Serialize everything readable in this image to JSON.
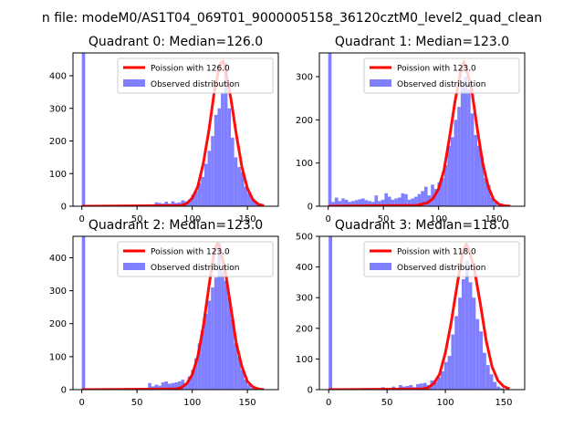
{
  "page_title": "n file: modeM0/AS1T04_069T01_9000005158_36120cztM0_level2_quad_clean",
  "colors": {
    "curve": "#ff0000",
    "hist": "#7f7fff",
    "axis": "#000000",
    "legend_border": "#cccccc"
  },
  "chart_data": [
    {
      "type": "bar",
      "title": "Quadrant 0: Median=126.0",
      "median": 126.0,
      "xlim": [
        -8,
        178
      ],
      "ylim": [
        0,
        470
      ],
      "xticks": [
        0,
        50,
        100,
        150
      ],
      "yticks": [
        0,
        100,
        200,
        300,
        400
      ],
      "legend": [
        "Poission with 126.0",
        "Observed distribution"
      ],
      "legend_loc": "upper right",
      "bin_width": 3,
      "bins": [
        [
          0,
          470
        ],
        [
          63,
          5
        ],
        [
          66,
          12
        ],
        [
          69,
          10
        ],
        [
          72,
          8
        ],
        [
          75,
          14
        ],
        [
          78,
          8
        ],
        [
          81,
          15
        ],
        [
          84,
          10
        ],
        [
          87,
          12
        ],
        [
          90,
          18
        ],
        [
          93,
          15
        ],
        [
          96,
          20
        ],
        [
          99,
          35
        ],
        [
          102,
          45
        ],
        [
          105,
          70
        ],
        [
          108,
          90
        ],
        [
          111,
          130
        ],
        [
          114,
          170
        ],
        [
          117,
          215
        ],
        [
          120,
          280
        ],
        [
          123,
          300
        ],
        [
          126,
          345
        ],
        [
          129,
          440
        ],
        [
          132,
          300
        ],
        [
          135,
          210
        ],
        [
          138,
          150
        ],
        [
          141,
          120
        ],
        [
          144,
          105
        ],
        [
          147,
          60
        ],
        [
          150,
          40
        ],
        [
          153,
          25
        ],
        [
          156,
          12
        ],
        [
          159,
          6
        ]
      ],
      "curve_x": [
        0,
        90,
        95,
        100,
        105,
        110,
        115,
        120,
        125,
        128,
        130,
        135,
        140,
        145,
        150,
        155,
        160,
        165
      ],
      "curve_y": [
        0,
        2,
        8,
        25,
        60,
        130,
        230,
        350,
        435,
        446,
        420,
        330,
        220,
        120,
        55,
        20,
        6,
        2
      ]
    },
    {
      "type": "bar",
      "title": "Quadrant 1: Median=123.0",
      "median": 123.0,
      "xlim": [
        -8,
        178
      ],
      "ylim": [
        0,
        355
      ],
      "xticks": [
        0,
        50,
        100,
        150
      ],
      "yticks": [
        0,
        100,
        200,
        300
      ],
      "legend": [
        "Poission with 123.0",
        "Observed distribution"
      ],
      "legend_loc": "upper right",
      "bin_width": 3,
      "bins": [
        [
          0,
          355
        ],
        [
          3,
          10
        ],
        [
          6,
          20
        ],
        [
          9,
          12
        ],
        [
          12,
          18
        ],
        [
          15,
          15
        ],
        [
          18,
          10
        ],
        [
          21,
          12
        ],
        [
          24,
          14
        ],
        [
          27,
          16
        ],
        [
          30,
          18
        ],
        [
          33,
          14
        ],
        [
          36,
          12
        ],
        [
          39,
          10
        ],
        [
          42,
          25
        ],
        [
          45,
          12
        ],
        [
          48,
          15
        ],
        [
          51,
          30
        ],
        [
          54,
          22
        ],
        [
          57,
          15
        ],
        [
          60,
          18
        ],
        [
          63,
          20
        ],
        [
          66,
          30
        ],
        [
          69,
          28
        ],
        [
          72,
          15
        ],
        [
          75,
          18
        ],
        [
          78,
          22
        ],
        [
          81,
          28
        ],
        [
          84,
          35
        ],
        [
          87,
          45
        ],
        [
          90,
          25
        ],
        [
          93,
          50
        ],
        [
          96,
          40
        ],
        [
          99,
          55
        ],
        [
          102,
          65
        ],
        [
          105,
          95
        ],
        [
          108,
          140
        ],
        [
          111,
          160
        ],
        [
          114,
          200
        ],
        [
          117,
          230
        ],
        [
          120,
          280
        ],
        [
          123,
          300
        ],
        [
          126,
          270
        ],
        [
          129,
          215
        ],
        [
          132,
          165
        ],
        [
          135,
          140
        ],
        [
          138,
          115
        ],
        [
          141,
          65
        ],
        [
          144,
          50
        ],
        [
          147,
          20
        ],
        [
          150,
          10
        ]
      ],
      "curve_x": [
        0,
        80,
        90,
        95,
        100,
        105,
        110,
        115,
        120,
        123,
        125,
        130,
        135,
        140,
        145,
        150,
        155,
        160,
        165
      ],
      "curve_y": [
        0,
        2,
        8,
        18,
        40,
        85,
        160,
        245,
        310,
        335,
        320,
        270,
        180,
        100,
        45,
        15,
        4,
        1,
        0
      ]
    },
    {
      "type": "bar",
      "title": "Quadrant 2: Median=123.0",
      "median": 123.0,
      "xlim": [
        -8,
        178
      ],
      "ylim": [
        0,
        465
      ],
      "xticks": [
        0,
        50,
        100,
        150
      ],
      "yticks": [
        0,
        100,
        200,
        300,
        400
      ],
      "legend": [
        "Poission with 123.0",
        "Observed distribution"
      ],
      "legend_loc": "upper right",
      "bin_width": 3,
      "bins": [
        [
          0,
          465
        ],
        [
          60,
          20
        ],
        [
          63,
          10
        ],
        [
          66,
          15
        ],
        [
          69,
          12
        ],
        [
          72,
          22
        ],
        [
          75,
          25
        ],
        [
          78,
          18
        ],
        [
          81,
          20
        ],
        [
          84,
          22
        ],
        [
          87,
          25
        ],
        [
          90,
          30
        ],
        [
          93,
          20
        ],
        [
          96,
          40
        ],
        [
          99,
          60
        ],
        [
          102,
          95
        ],
        [
          105,
          140
        ],
        [
          108,
          180
        ],
        [
          111,
          230
        ],
        [
          114,
          270
        ],
        [
          117,
          310
        ],
        [
          120,
          340
        ],
        [
          123,
          445
        ],
        [
          126,
          360
        ],
        [
          129,
          330
        ],
        [
          132,
          280
        ],
        [
          135,
          215
        ],
        [
          138,
          140
        ],
        [
          141,
          100
        ],
        [
          144,
          60
        ],
        [
          147,
          30
        ],
        [
          150,
          15
        ],
        [
          153,
          5
        ]
      ],
      "curve_x": [
        0,
        85,
        90,
        95,
        100,
        105,
        110,
        115,
        120,
        123,
        125,
        130,
        135,
        140,
        145,
        150,
        155,
        160,
        165
      ],
      "curve_y": [
        0,
        2,
        6,
        18,
        45,
        100,
        190,
        310,
        420,
        445,
        430,
        360,
        250,
        140,
        70,
        25,
        8,
        2,
        0
      ]
    },
    {
      "type": "bar",
      "title": "Quadrant 3: Median=118.0",
      "median": 118.0,
      "xlim": [
        -8,
        168
      ],
      "ylim": [
        0,
        500
      ],
      "xticks": [
        0,
        50,
        100,
        150
      ],
      "yticks": [
        0,
        100,
        200,
        300,
        400,
        500
      ],
      "legend": [
        "Poission with 118.0",
        "Observed distribution"
      ],
      "legend_loc": "upper right",
      "bin_width": 3,
      "bins": [
        [
          0,
          500
        ],
        [
          30,
          5
        ],
        [
          45,
          8
        ],
        [
          54,
          10
        ],
        [
          60,
          15
        ],
        [
          63,
          10
        ],
        [
          66,
          12
        ],
        [
          69,
          15
        ],
        [
          72,
          8
        ],
        [
          75,
          18
        ],
        [
          78,
          20
        ],
        [
          81,
          22
        ],
        [
          84,
          15
        ],
        [
          87,
          30
        ],
        [
          90,
          25
        ],
        [
          93,
          40
        ],
        [
          96,
          60
        ],
        [
          99,
          90
        ],
        [
          102,
          110
        ],
        [
          105,
          180
        ],
        [
          108,
          240
        ],
        [
          111,
          300
        ],
        [
          114,
          360
        ],
        [
          117,
          420
        ],
        [
          120,
          350
        ],
        [
          123,
          300
        ],
        [
          126,
          230
        ],
        [
          129,
          190
        ],
        [
          132,
          120
        ],
        [
          135,
          80
        ],
        [
          138,
          50
        ],
        [
          141,
          25
        ],
        [
          144,
          10
        ],
        [
          147,
          5
        ]
      ],
      "curve_x": [
        0,
        80,
        85,
        90,
        95,
        100,
        105,
        110,
        115,
        118,
        120,
        125,
        130,
        135,
        140,
        145,
        150,
        155
      ],
      "curve_y": [
        0,
        2,
        6,
        20,
        50,
        120,
        220,
        340,
        450,
        475,
        460,
        390,
        280,
        160,
        75,
        30,
        10,
        3
      ]
    }
  ]
}
